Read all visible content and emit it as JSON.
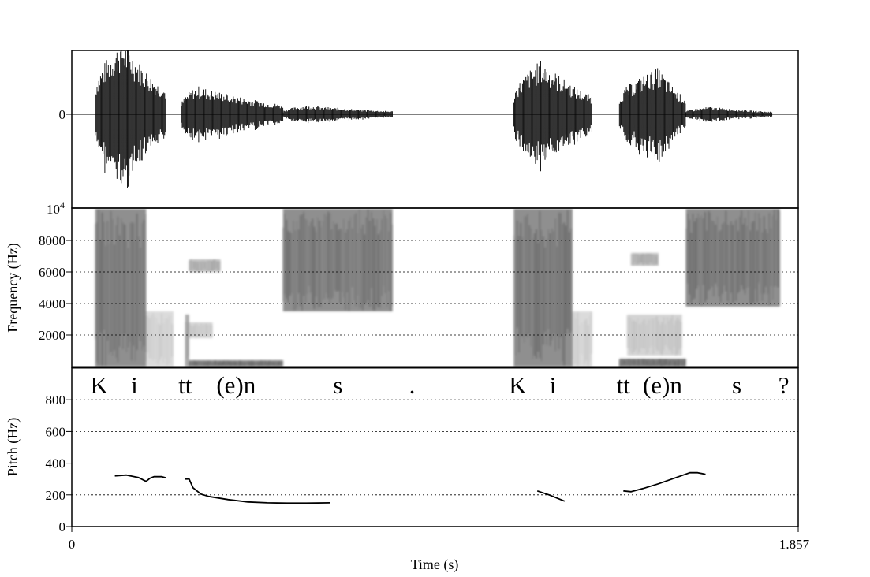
{
  "chart_data": [
    {
      "type": "line",
      "panel": "waveform",
      "y_tick_labels": [
        "0"
      ],
      "time_range_s": [
        0,
        1.857
      ],
      "events": [
        {
          "start": 0.06,
          "peak": 0.13,
          "end": 0.24,
          "amplitude": 1.0
        },
        {
          "start": 0.28,
          "peak": 0.32,
          "end": 0.54,
          "amplitude": 0.38
        },
        {
          "start": 0.54,
          "peak": 0.6,
          "end": 0.82,
          "amplitude": 0.12
        },
        {
          "start": 1.13,
          "peak": 1.2,
          "end": 1.33,
          "amplitude": 0.72
        },
        {
          "start": 1.4,
          "peak": 1.5,
          "end": 1.57,
          "amplitude": 0.62
        },
        {
          "start": 1.57,
          "peak": 1.63,
          "end": 1.79,
          "amplitude": 0.1
        }
      ]
    },
    {
      "type": "heatmap",
      "panel": "spectrogram",
      "ylabel": "Frequency (Hz)",
      "ylim": [
        0,
        10000
      ],
      "y_ticks": [
        2000,
        4000,
        6000,
        8000
      ],
      "y_tick_labels": [
        "2000",
        "4000",
        "6000",
        "8000"
      ],
      "y_top_label_base": "10",
      "y_top_label_exp": "4",
      "grid": true,
      "energy_regions": [
        {
          "t": [
            0.06,
            0.19
          ],
          "f": [
            0,
            10000
          ],
          "intensity": 0.8
        },
        {
          "t": [
            0.19,
            0.26
          ],
          "f": [
            0,
            3500
          ],
          "intensity": 0.25
        },
        {
          "t": [
            0.29,
            0.3
          ],
          "f": [
            0,
            3300
          ],
          "intensity": 0.6
        },
        {
          "t": [
            0.3,
            0.54
          ],
          "f": [
            0,
            400
          ],
          "intensity": 0.85
        },
        {
          "t": [
            0.3,
            0.38
          ],
          "f": [
            6000,
            6800
          ],
          "intensity": 0.45
        },
        {
          "t": [
            0.3,
            0.36
          ],
          "f": [
            1800,
            2800
          ],
          "intensity": 0.3
        },
        {
          "t": [
            0.54,
            0.82
          ],
          "f": [
            3500,
            10000
          ],
          "intensity": 0.8
        },
        {
          "t": [
            1.13,
            1.28
          ],
          "f": [
            0,
            10000
          ],
          "intensity": 0.8
        },
        {
          "t": [
            1.28,
            1.33
          ],
          "f": [
            0,
            3500
          ],
          "intensity": 0.25
        },
        {
          "t": [
            1.4,
            1.57
          ],
          "f": [
            0,
            500
          ],
          "intensity": 0.85
        },
        {
          "t": [
            1.42,
            1.56
          ],
          "f": [
            700,
            3300
          ],
          "intensity": 0.3
        },
        {
          "t": [
            1.43,
            1.5
          ],
          "f": [
            6400,
            7200
          ],
          "intensity": 0.45
        },
        {
          "t": [
            1.57,
            1.81
          ],
          "f": [
            3800,
            10000
          ],
          "intensity": 0.8
        }
      ]
    },
    {
      "type": "line",
      "panel": "pitch",
      "ylabel": "Pitch (Hz)",
      "xlabel": "Time (s)",
      "xlim": [
        0,
        1.857
      ],
      "x_tick_labels": [
        "0",
        "1.857"
      ],
      "ylim": [
        0,
        1000
      ],
      "y_ticks": [
        0,
        200,
        400,
        600,
        800
      ],
      "y_tick_labels": [
        "0",
        "200",
        "400",
        "600",
        "800"
      ],
      "grid": true,
      "annotations": [
        {
          "text": "K",
          "t": 0.07
        },
        {
          "text": "i",
          "t": 0.16
        },
        {
          "text": "tt",
          "t": 0.29
        },
        {
          "text": "(e)n",
          "t": 0.42
        },
        {
          "text": "s",
          "t": 0.68
        },
        {
          "text": ".",
          "t": 0.87
        },
        {
          "text": "K",
          "t": 1.14
        },
        {
          "text": "i",
          "t": 1.23
        },
        {
          "text": "tt",
          "t": 1.41
        },
        {
          "text": "(e)n",
          "t": 1.51
        },
        {
          "text": "s",
          "t": 1.7
        },
        {
          "text": "?",
          "t": 1.82
        }
      ],
      "series": [
        {
          "x": [
            0.11,
            0.14,
            0.17,
            0.19,
            0.2,
            0.21,
            0.23,
            0.24
          ],
          "y": [
            320,
            325,
            310,
            285,
            305,
            315,
            315,
            308
          ]
        },
        {
          "x": [
            0.29,
            0.3,
            0.31,
            0.33,
            0.35,
            0.4,
            0.45,
            0.5,
            0.55,
            0.6,
            0.66
          ],
          "y": [
            300,
            300,
            245,
            205,
            190,
            170,
            155,
            150,
            148,
            148,
            150
          ]
        },
        {
          "x": [
            1.19,
            1.22,
            1.26
          ],
          "y": [
            225,
            200,
            160
          ]
        },
        {
          "x": [
            1.41,
            1.43,
            1.46,
            1.5,
            1.54,
            1.58,
            1.6,
            1.62
          ],
          "y": [
            225,
            220,
            240,
            270,
            305,
            340,
            340,
            330
          ]
        }
      ]
    }
  ]
}
